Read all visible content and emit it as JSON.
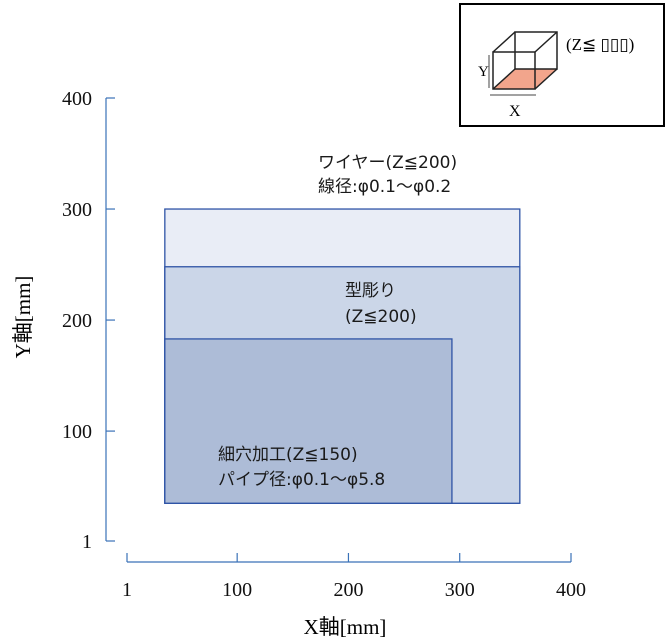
{
  "chart_data": {
    "type": "area",
    "xlabel": "X軸[mm]",
    "ylabel": "Y軸[mm]",
    "xlim": [
      1,
      400
    ],
    "ylim": [
      1,
      400
    ],
    "xticks": [
      "1",
      "100",
      "200",
      "300",
      "400"
    ],
    "yticks": [
      "1",
      "100",
      "200",
      "300",
      "400"
    ],
    "xtick_values": [
      1,
      100,
      200,
      300,
      400
    ],
    "ytick_values": [
      1,
      100,
      200,
      300,
      400
    ],
    "grid": false,
    "regions": [
      {
        "key": "wire",
        "label_line1": "ワイヤー(Z≦200)",
        "label_line2": "線径:φ0.1～φ0.2",
        "x_range": [
          35,
          354
        ],
        "y_range": [
          35,
          300
        ],
        "fill": "#e9edf6"
      },
      {
        "key": "diesink",
        "label_line1": "型彫り",
        "label_line2": "(Z≦200)",
        "x_range": [
          35,
          354
        ],
        "y_range": [
          35,
          248
        ],
        "fill": "#cbd6e8"
      },
      {
        "key": "smallhole",
        "label_line1": "細穴加工(Z≦150)",
        "label_line2": "パイプ径:φ0.1～φ5.8",
        "x_range": [
          35,
          293
        ],
        "y_range": [
          35,
          183
        ],
        "fill": "#adbcd7"
      }
    ],
    "stroke_color": "#2f54a6",
    "axis_color": "#3a72b8"
  },
  "inset": {
    "label_y": "Y",
    "label_x": "X",
    "z_label": "(Z≦ ▯▯▯)",
    "base_color": "#f2a58c"
  }
}
